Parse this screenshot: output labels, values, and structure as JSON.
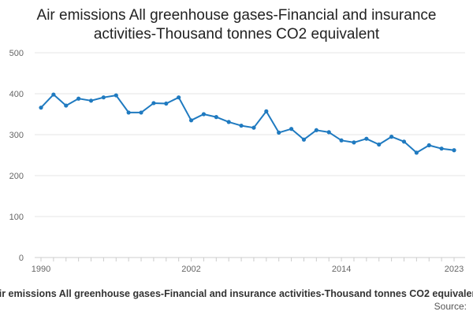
{
  "chart_data": {
    "type": "line",
    "title_line1": "Air emissions All greenhouse gases-Financial and insurance",
    "title_line2": "activities-Thousand tonnes CO2 equivalent",
    "xlabel": "",
    "ylabel": "",
    "ylim": [
      0,
      500
    ],
    "yticks": [
      0,
      100,
      200,
      300,
      400,
      500
    ],
    "xticks": [
      1990,
      2002,
      2014,
      2023
    ],
    "grid": true,
    "legend_position": "bottom",
    "color": "#1f7ac0",
    "series": [
      {
        "name": "Air emissions All greenhouse gases-Financial and insurance activities-Thousand tonnes CO2 equivalent",
        "x": [
          1990,
          1991,
          1992,
          1993,
          1994,
          1995,
          1996,
          1997,
          1998,
          1999,
          2000,
          2001,
          2002,
          2003,
          2004,
          2005,
          2006,
          2007,
          2008,
          2009,
          2010,
          2011,
          2012,
          2013,
          2014,
          2015,
          2016,
          2017,
          2018,
          2019,
          2020,
          2021,
          2022,
          2023
        ],
        "values": [
          366,
          398,
          371,
          388,
          383,
          391,
          396,
          354,
          354,
          377,
          376,
          391,
          335,
          350,
          343,
          331,
          322,
          317,
          357,
          305,
          314,
          288,
          311,
          306,
          286,
          281,
          290,
          276,
          295,
          283,
          256,
          274,
          266,
          262
        ]
      }
    ],
    "source_label": "Source:"
  }
}
